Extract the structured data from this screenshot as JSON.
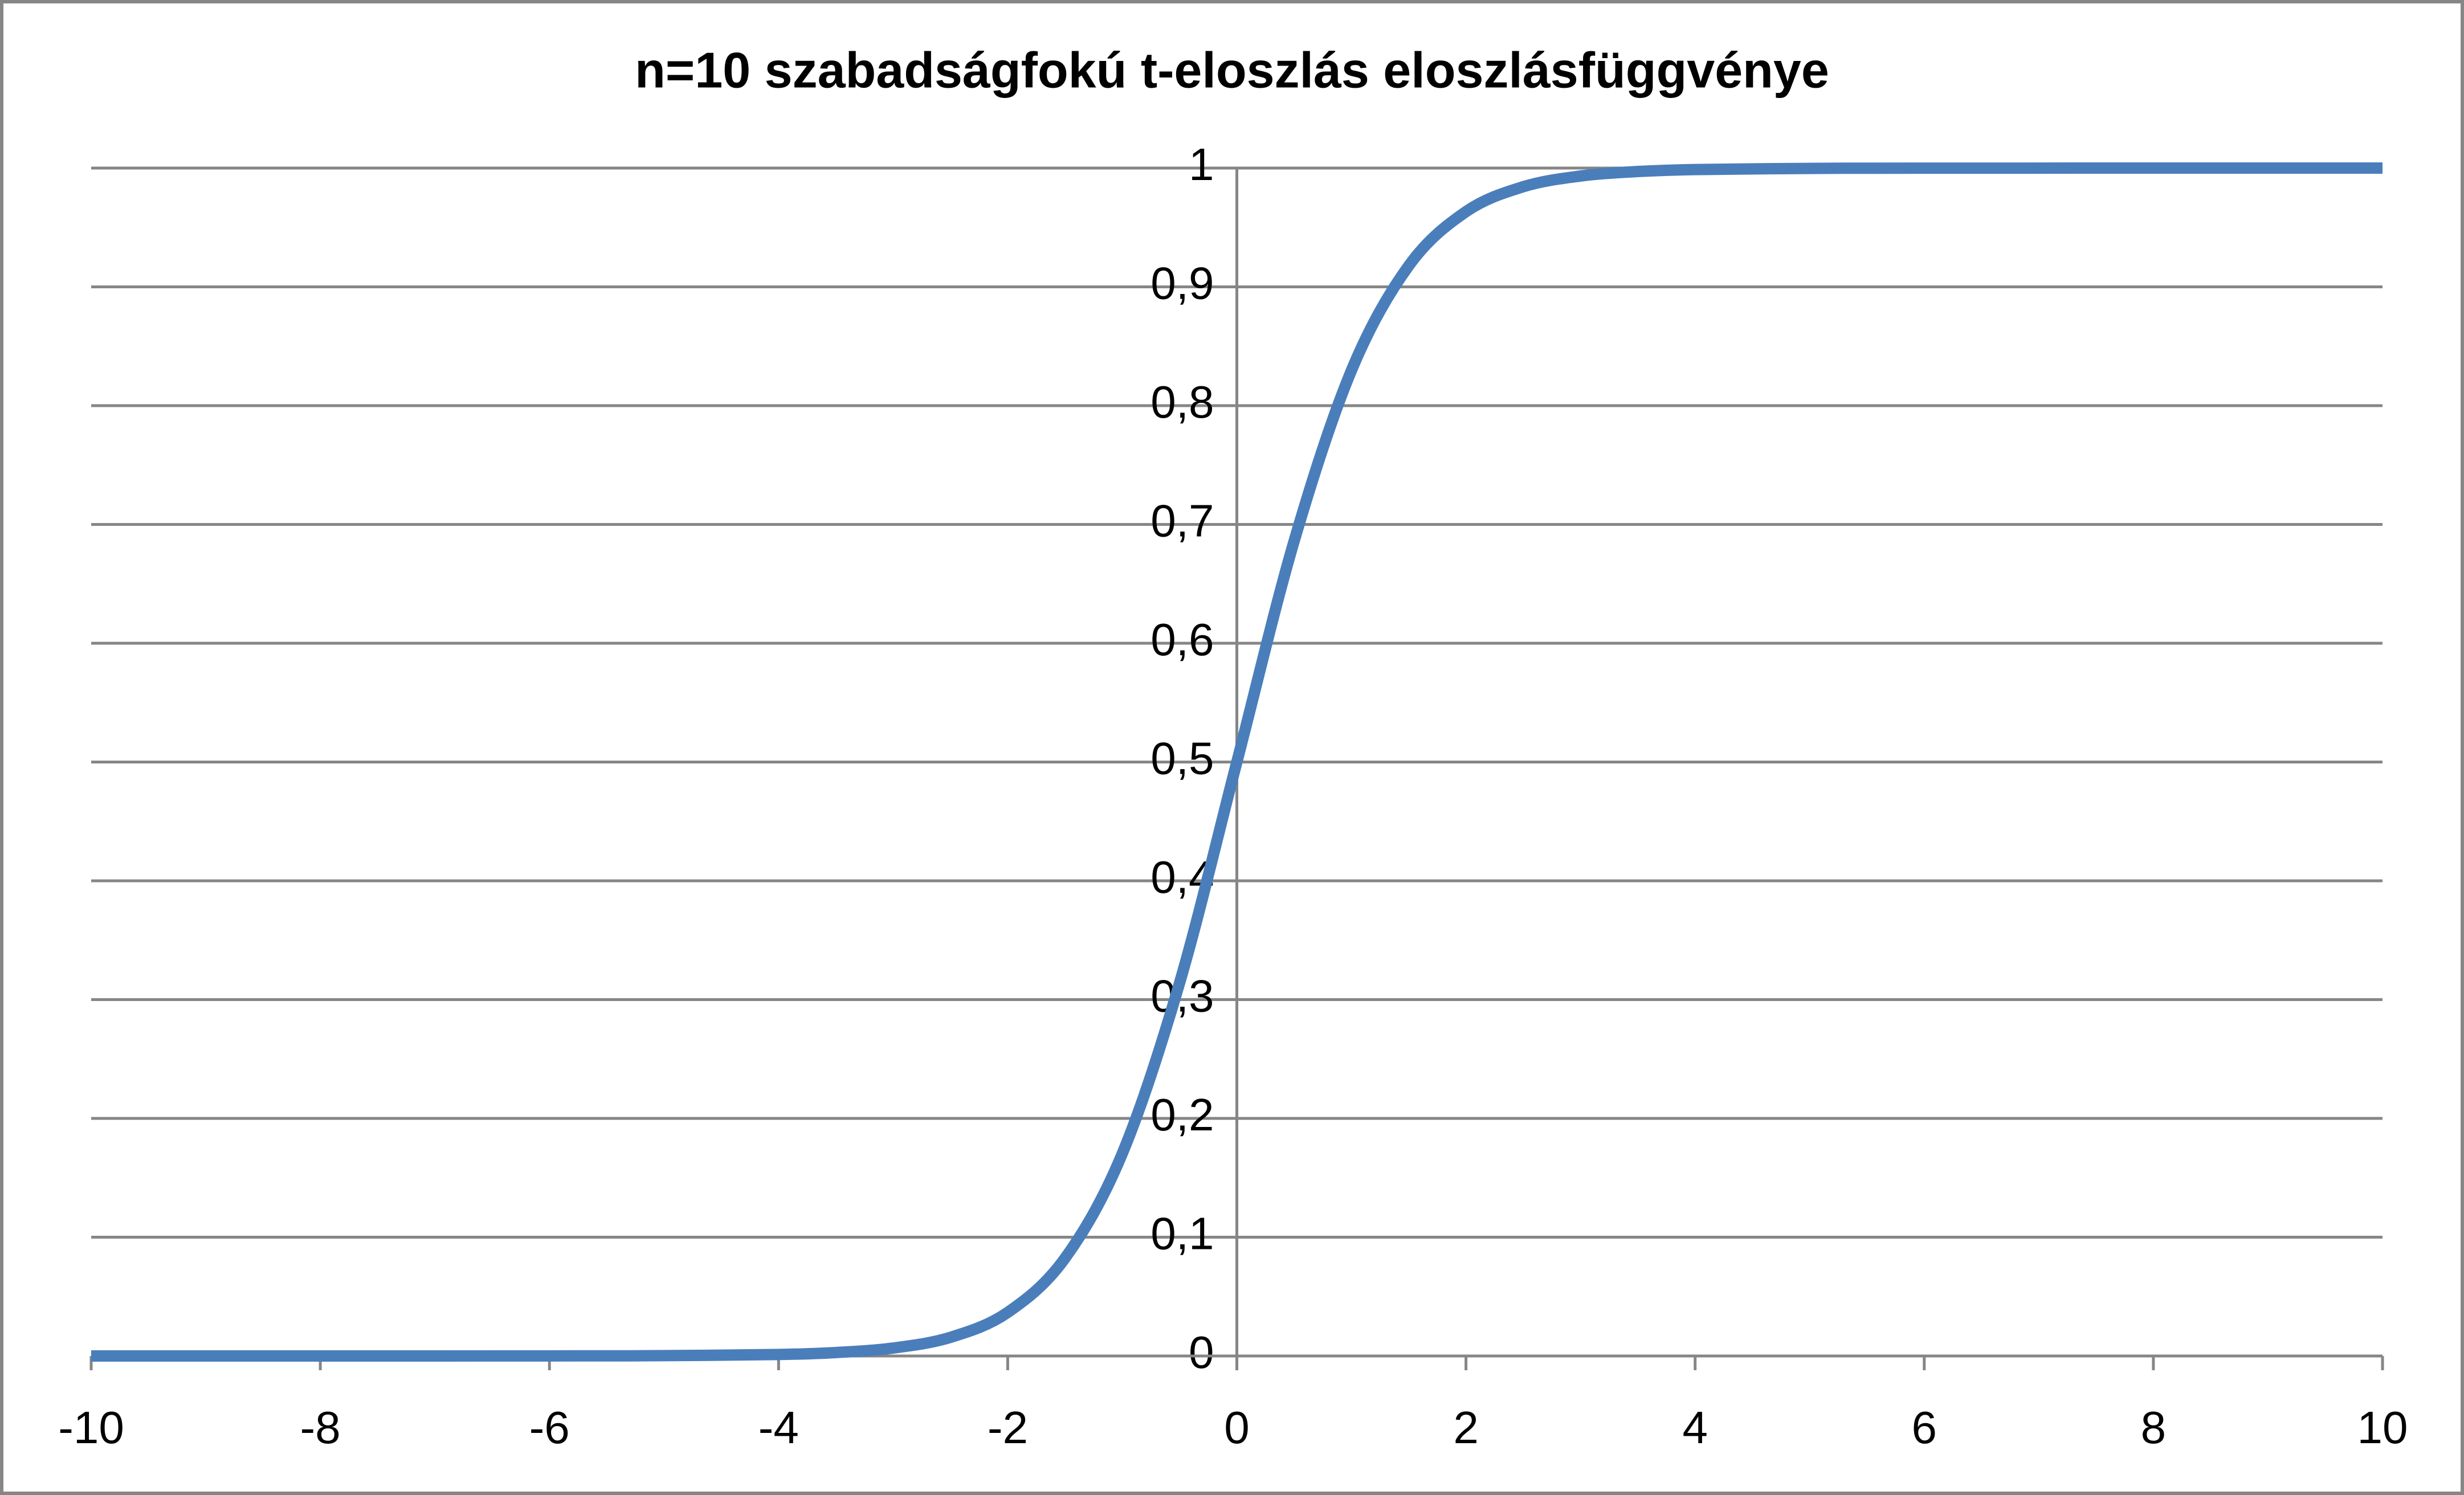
{
  "chart_data": {
    "type": "line",
    "title": "n=10 szabadságfokú t-eloszlás eloszlásfüggvénye",
    "x": [
      -10,
      -8,
      -6,
      -5,
      -4,
      -3.5,
      -3,
      -2.5,
      -2,
      -1.5,
      -1,
      -0.5,
      0,
      0.5,
      1,
      1.5,
      2,
      2.5,
      3,
      3.5,
      4,
      5,
      6,
      8,
      10
    ],
    "values": [
      1e-06,
      6e-06,
      7e-05,
      0.00027,
      0.00126,
      0.0029,
      0.0067,
      0.0157,
      0.0367,
      0.0823,
      0.1704,
      0.314,
      0.5,
      0.686,
      0.8296,
      0.9177,
      0.9633,
      0.9843,
      0.9933,
      0.9971,
      0.99874,
      0.99973,
      0.99993,
      0.999994,
      0.999999
    ],
    "color": "#4a7ebb",
    "xlim": [
      -10,
      10
    ],
    "xticks": [
      -10,
      -8,
      -6,
      -4,
      -2,
      0,
      2,
      4,
      6,
      8,
      10
    ],
    "ylim": [
      0,
      1
    ],
    "yticks": [
      0,
      {
        "value": 0.1,
        "label": "0,1"
      },
      {
        "value": 0.2,
        "label": "0,2"
      },
      {
        "value": 0.3,
        "label": "0,3"
      },
      {
        "value": 0.4,
        "label": "0,4"
      },
      {
        "value": 0.5,
        "label": "0,5"
      },
      {
        "value": 0.6,
        "label": "0,6"
      },
      {
        "value": 0.7,
        "label": "0,7"
      },
      {
        "value": 0.8,
        "label": "0,8"
      },
      {
        "value": 0.9,
        "label": "0,9"
      },
      1
    ],
    "grid": true
  }
}
